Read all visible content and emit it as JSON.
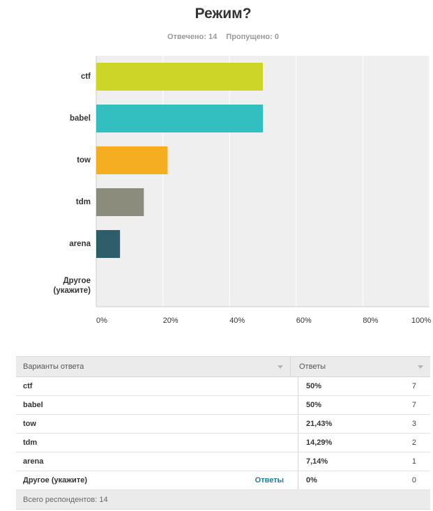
{
  "question": {
    "title": "Режим?",
    "answered_label": "Отвечено: 14",
    "skipped_label": "Пропущено: 0"
  },
  "chart_data": {
    "type": "bar",
    "orientation": "horizontal",
    "categories": [
      "ctf",
      "babel",
      "tow",
      "tdm",
      "arena",
      "Другое\n(укажите)"
    ],
    "values": [
      50,
      50,
      21.43,
      14.29,
      7.14,
      0
    ],
    "colors": [
      "#cdd628",
      "#33bfbf",
      "#f5ad22",
      "#8c8c7c",
      "#2d5e6a",
      "#cccccc"
    ],
    "xlim": [
      0,
      100
    ],
    "xticks": [
      "0%",
      "20%",
      "40%",
      "60%",
      "80%",
      "100%"
    ],
    "grid": true,
    "plot_background": "#efefef"
  },
  "table": {
    "header_options": "Варианты ответа",
    "header_answers": "Ответы",
    "rows": [
      {
        "label": "ctf",
        "percent": "50%",
        "count": "7"
      },
      {
        "label": "babel",
        "percent": "50%",
        "count": "7"
      },
      {
        "label": "tow",
        "percent": "21,43%",
        "count": "3"
      },
      {
        "label": "tdm",
        "percent": "14,29%",
        "count": "2"
      },
      {
        "label": "arena",
        "percent": "7,14%",
        "count": "1"
      },
      {
        "label": "Другое (укажите)",
        "link": "Ответы",
        "percent": "0%",
        "count": "0"
      }
    ],
    "footer": "Всего респондентов: 14"
  }
}
